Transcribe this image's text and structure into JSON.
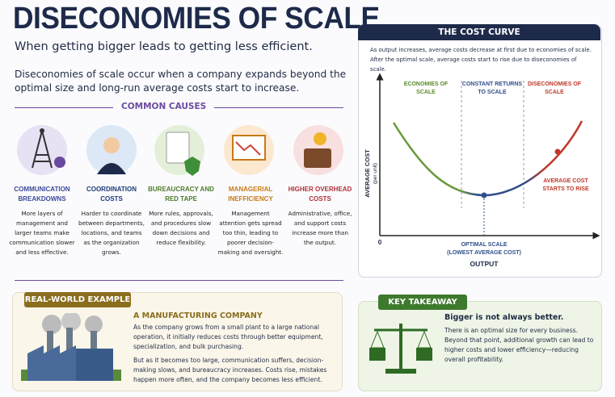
{
  "header": {
    "title": "DISECONOMIES OF SCALE",
    "subtitle": "When getting bigger leads to getting less efficient.",
    "intro": "Diseconomies of scale occur when a company expands beyond the optimal size and long-run average costs start to increase."
  },
  "causes": {
    "heading": "COMMON CAUSES",
    "items": [
      {
        "title": "COMMUNICATION BREAKDOWNS",
        "text": "More layers of management and larger teams make communication slower and less effective."
      },
      {
        "title": "COORDINATION COSTS",
        "text": "Harder to coordinate between departments, locations, and teams as the organization grows."
      },
      {
        "title": "BUREAUCRACY AND RED TAPE",
        "text": "More rules, approvals, and procedures slow down decisions and reduce flexibility."
      },
      {
        "title": "MANAGERIAL INEFFICIENCY",
        "text": "Management attention gets spread too thin, leading to poorer decision-making and oversight."
      },
      {
        "title": "HIGHER OVERHEAD COSTS",
        "text": "Administrative, office, and support costs increase more than the output."
      }
    ]
  },
  "cost_curve": {
    "heading": "THE COST CURVE",
    "description": "As output increases, average costs decrease at first due to economies of scale. After the optimal scale, average costs start to rise due to diseconomies of scale.",
    "regions": [
      "ECONOMIES OF SCALE",
      "CONSTANT RETURNS TO SCALE",
      "DISECONOMIES OF SCALE"
    ],
    "y_label": "AVERAGE COST",
    "y_sublabel": "(per unit)",
    "origin": "0",
    "x_label": "OUTPUT",
    "optimal": "OPTIMAL SCALE",
    "optimal_note": "(LOWEST AVERAGE COST)",
    "rise_note": "AVERAGE COST STARTS TO RISE"
  },
  "example": {
    "heading": "REAL-WORLD EXAMPLE",
    "title": "A MANUFACTURING COMPANY",
    "paragraphs": [
      "As the company grows from a small plant to a large national operation, it initially reduces costs through better equipment, specialization, and bulk purchasing.",
      "But as it becomes too large, communication suffers, decision-making slows, and bureaucracy increases. Costs rise, mistakes happen more often, and the company becomes less efficient."
    ]
  },
  "takeaway": {
    "heading": "KEY TAKEAWAY",
    "title": "Bigger is not always better.",
    "text": "There is an optimal size for every business. Beyond that point, additional growth can lead to higher costs and lower efficiency—reducing overall profitability."
  }
}
